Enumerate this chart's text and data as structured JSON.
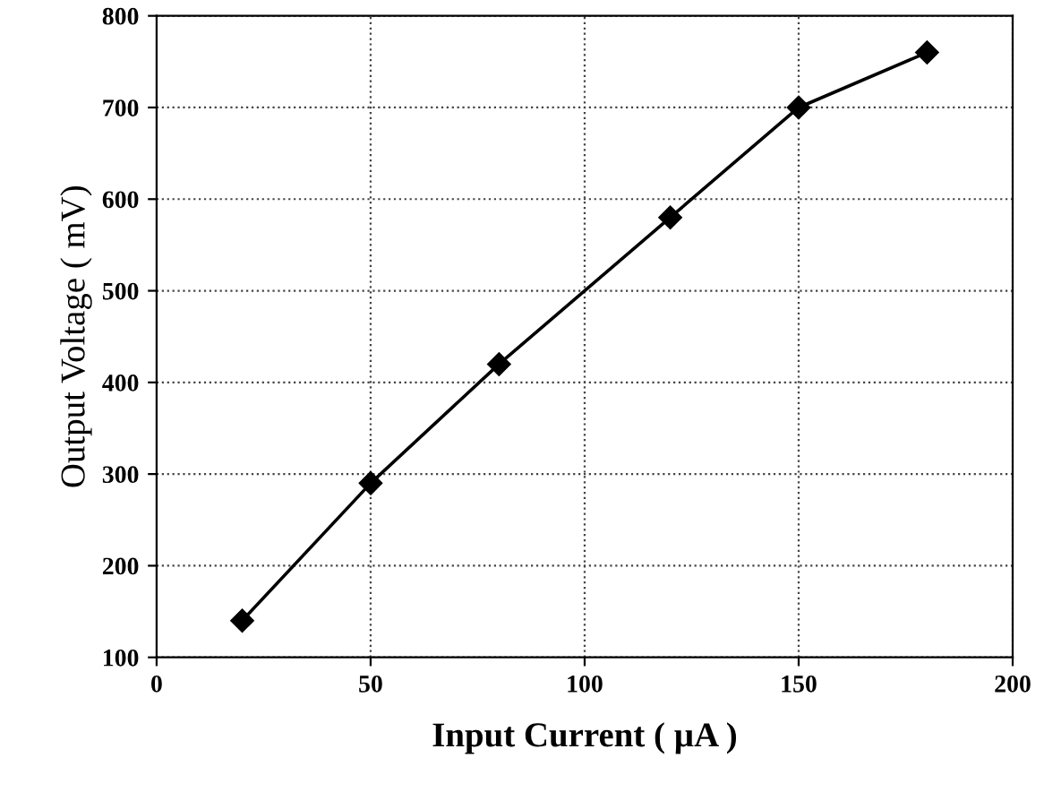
{
  "chart_data": {
    "type": "line",
    "xlabel": "Input Current ( µA )",
    "ylabel": "Output Voltage ( mV)",
    "x": [
      20,
      50,
      80,
      120,
      150,
      180
    ],
    "series": [
      {
        "color": "#000000",
        "values": [
          140,
          290,
          420,
          580,
          700,
          760
        ]
      }
    ],
    "xlim": [
      0,
      200
    ],
    "xticks": [
      0,
      50,
      100,
      150,
      200
    ],
    "ylim": [
      100,
      800
    ],
    "yticks": [
      100,
      200,
      300,
      400,
      500,
      600,
      700,
      800
    ],
    "grid": true,
    "marker": "diamond",
    "line_style": "solid"
  }
}
